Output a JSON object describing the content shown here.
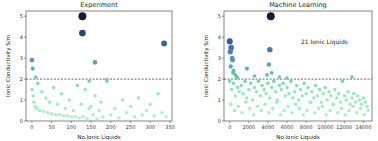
{
  "chart_data": [
    {
      "type": "scatter",
      "title": "Experiment",
      "x_label": "No.Ionic Liquids",
      "y_label": "Ionic Conductivity S/m",
      "xlim": [
        -15,
        355
      ],
      "xticks": [
        0,
        50,
        100,
        150,
        200,
        250,
        300,
        350
      ],
      "ylim": [
        0,
        5.25
      ],
      "yticks": [
        0,
        1,
        2,
        3,
        4,
        5
      ],
      "grid": false,
      "reference_line": 2,
      "x": [
        0,
        3,
        5,
        8,
        12,
        15,
        20,
        25,
        30,
        35,
        40,
        45,
        50,
        55,
        60,
        65,
        70,
        75,
        80,
        85,
        90,
        95,
        100,
        105,
        110,
        115,
        120,
        125,
        130,
        135,
        140,
        145,
        150,
        155,
        160,
        165,
        170,
        175,
        180,
        190,
        200,
        210,
        220,
        230,
        240,
        250,
        260,
        270,
        280,
        290,
        300,
        310,
        320,
        330,
        340,
        128,
        128,
        0,
        2,
        160,
        335,
        10,
        145,
        190
      ],
      "values": [
        1.5,
        1.2,
        0.9,
        0.7,
        0.6,
        1.8,
        0.5,
        1.4,
        0.45,
        1.1,
        0.4,
        0.9,
        0.35,
        1.6,
        0.3,
        0.8,
        0.3,
        1.3,
        0.25,
        0.6,
        0.25,
        1.0,
        0.2,
        0.5,
        0.2,
        1.7,
        0.15,
        0.8,
        0.2,
        1.5,
        0.12,
        0.6,
        0.7,
        0.3,
        1.2,
        0.1,
        0.5,
        0.9,
        0.2,
        1.9,
        0.3,
        0.6,
        0.15,
        1.0,
        0.4,
        0.7,
        0.2,
        1.1,
        0.3,
        0.5,
        0.8,
        0.25,
        1.3,
        0.4,
        0.2,
        5.0,
        4.2,
        2.9,
        2.5,
        2.8,
        3.7,
        2.1,
        1.9,
        2.0
      ]
    },
    {
      "type": "scatter",
      "title": "Machine Learning",
      "x_label": "No.Ionic Liquids",
      "y_label": "Ionic Conductivity S/m",
      "annotation": "21 Ionic Liquids",
      "xlim": [
        -600,
        14900
      ],
      "xticks": [
        0,
        2000,
        4000,
        6000,
        8000,
        10000,
        12000,
        14000
      ],
      "ylim": [
        0,
        5.25
      ],
      "yticks": [
        0,
        1,
        2,
        3,
        4,
        5
      ],
      "grid": false,
      "reference_line": 2,
      "x": [
        0,
        200,
        400,
        600,
        800,
        1000,
        1200,
        1400,
        1600,
        1800,
        2000,
        2200,
        2400,
        2600,
        2800,
        3000,
        3200,
        3400,
        3600,
        3800,
        4000,
        4200,
        4400,
        4600,
        4800,
        5000,
        5200,
        5400,
        5600,
        5800,
        6000,
        6200,
        6400,
        6600,
        6800,
        7000,
        7200,
        7400,
        7600,
        7800,
        8000,
        8200,
        8400,
        8600,
        8800,
        9000,
        9200,
        9400,
        9600,
        9800,
        10000,
        10200,
        10400,
        10600,
        10800,
        11000,
        11200,
        11400,
        11600,
        11800,
        12000,
        12200,
        12400,
        12600,
        12800,
        13000,
        13200,
        13400,
        13600,
        13800,
        14000,
        14200,
        14400,
        100,
        500,
        900,
        1300,
        1700,
        2100,
        2500,
        2900,
        3300,
        3700,
        4100,
        4500,
        4900,
        5300,
        5700,
        6100,
        6500,
        6900,
        7300,
        7700,
        8100,
        8500,
        8900,
        9300,
        9700,
        10100,
        10500,
        10900,
        11300,
        11700,
        12100,
        12500,
        12900,
        13300,
        13700,
        14100,
        14500,
        0,
        150,
        50,
        300,
        100,
        250,
        400,
        600,
        800,
        1800,
        4100,
        4200,
        4300,
        3900,
        5200,
        2600,
        6000,
        12800,
        350,
        700,
        4400
      ],
      "values": [
        1.9,
        1.5,
        1.8,
        1.2,
        1.6,
        1.4,
        1.7,
        1.3,
        1.9,
        1.1,
        1.5,
        1.8,
        1.0,
        1.6,
        1.4,
        1.9,
        1.2,
        1.7,
        1.5,
        1.3,
        1.8,
        1.1,
        1.6,
        1.9,
        1.4,
        1.0,
        1.7,
        1.5,
        1.8,
        1.2,
        1.6,
        1.3,
        1.9,
        1.1,
        1.4,
        1.7,
        1.0,
        1.5,
        1.2,
        1.8,
        1.3,
        1.6,
        0.9,
        1.4,
        1.1,
        1.7,
        1.2,
        1.5,
        0.9,
        1.3,
        1.6,
        1.0,
        1.4,
        1.2,
        0.8,
        1.5,
        1.1,
        1.3,
        0.9,
        1.9,
        1.2,
        1.0,
        1.4,
        0.8,
        1.1,
        1.3,
        0.9,
        1.2,
        1.0,
        0.8,
        1.1,
        0.9,
        0.7,
        0.8,
        0.5,
        0.7,
        0.4,
        0.9,
        0.6,
        0.3,
        0.7,
        0.5,
        0.8,
        0.4,
        0.6,
        0.9,
        0.3,
        0.5,
        0.7,
        0.4,
        0.8,
        0.6,
        0.3,
        0.5,
        0.9,
        0.4,
        0.6,
        0.7,
        0.3,
        0.5,
        0.8,
        0.4,
        0.6,
        0.3,
        0.5,
        0.7,
        0.4,
        0.6,
        0.3,
        0.5,
        3.8,
        3.5,
        3.3,
        2.9,
        2.6,
        3.0,
        2.4,
        2.2,
        2.1,
        2.5,
        2.7,
        3.4,
        5.0,
        2.2,
        2.1,
        2.15,
        2.05,
        2.1,
        2.3,
        2.05,
        2.3
      ]
    }
  ]
}
